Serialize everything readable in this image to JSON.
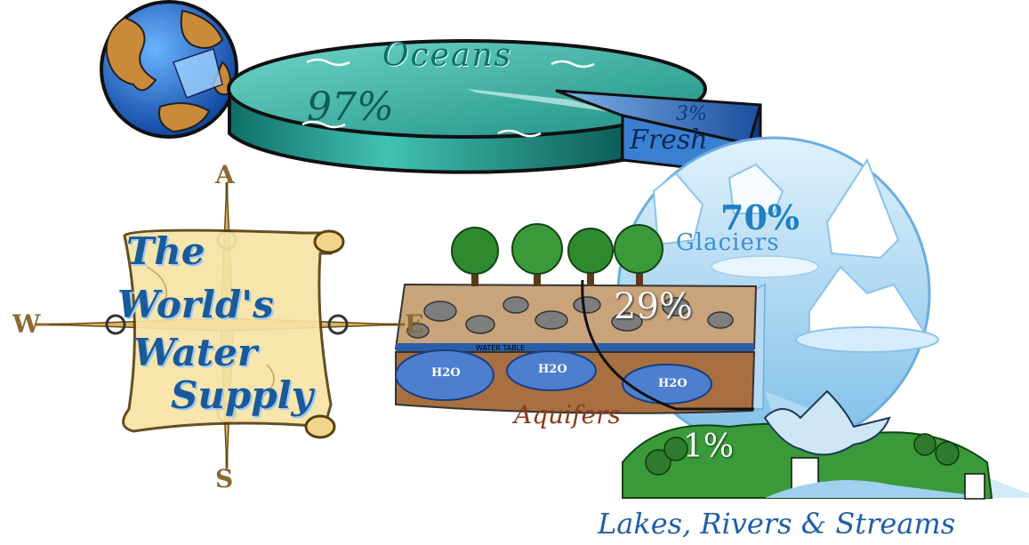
{
  "oceans": {
    "title": "Oceans",
    "percent": "97%"
  },
  "fresh": {
    "percent": "3%",
    "label": "Fresh"
  },
  "glaciers": {
    "percent": "70%",
    "label": "Glaciers"
  },
  "aquifers": {
    "percent": "29%",
    "label": "Aquifers",
    "water_table": "WATER TABLE",
    "h2o": [
      "H2O",
      "H2O",
      "H2O"
    ]
  },
  "lakes": {
    "percent": "1%",
    "label": "Lakes, Rivers & Streams"
  },
  "scroll": {
    "lines": [
      "The",
      "World's",
      "Water",
      "Supply"
    ]
  },
  "compass": {
    "north": "A",
    "west": "W",
    "east": "E",
    "south": "S"
  },
  "colors": {
    "ocean": "#2aa39a",
    "fresh": "#2f6fc0",
    "glacier": "#bfe0f5",
    "soil": "#b08050",
    "scroll": "#f7e3a6",
    "land": "#3a9a3a"
  },
  "icons": [
    "globe-icon",
    "compass-rose-icon",
    "tree-icon",
    "iceberg-icon",
    "michigan-map-icon"
  ]
}
